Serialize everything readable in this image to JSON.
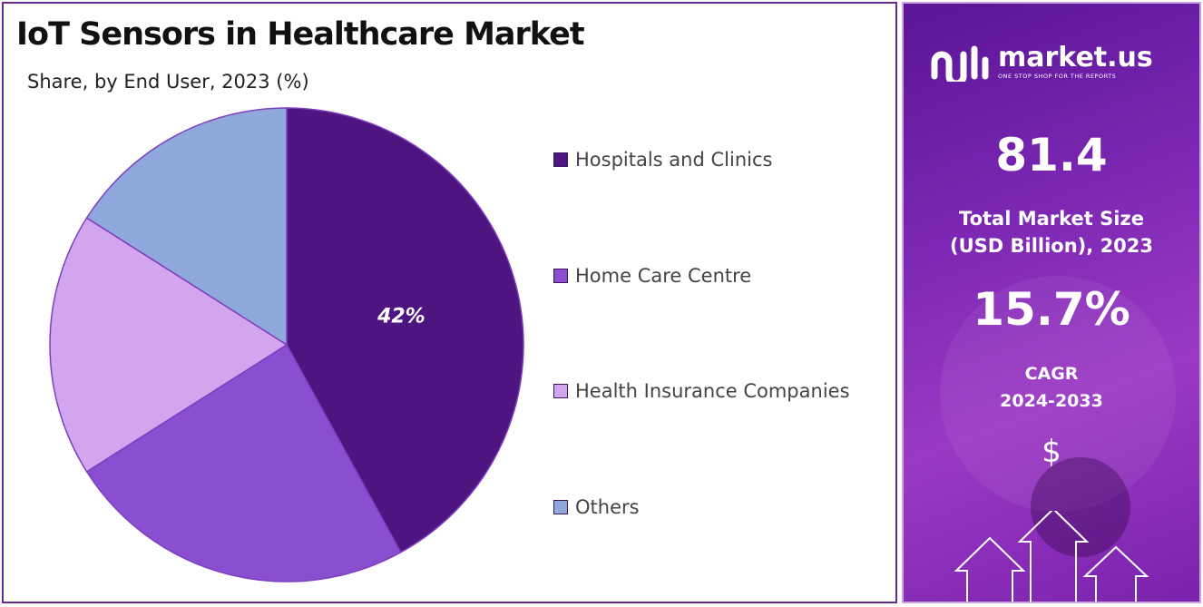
{
  "chart": {
    "title": "IoT Sensors in Healthcare Market",
    "subtitle": "Share, by End User, 2023 (%)"
  },
  "chart_data": {
    "type": "pie",
    "title": "IoT Sensors in Healthcare Market",
    "subtitle": "Share, by End User, 2023 (%)",
    "start_angle_deg": 0,
    "direction": "clockwise",
    "categories": [
      "Hospitals and Clinics",
      "Home Care Centre",
      "Health Insurance Companies",
      "Others"
    ],
    "values": [
      42,
      24,
      18,
      16
    ],
    "colors": [
      "#4e1480",
      "#8a4fd0",
      "#d2a5ee",
      "#8fa9dc"
    ],
    "data_labels": [
      "42%",
      "",
      "",
      ""
    ],
    "legend_position": "right"
  },
  "legend": {
    "items": [
      {
        "label": "Hospitals and Clinics",
        "color": "#4e1480"
      },
      {
        "label": "Home Care Centre",
        "color": "#8a4fd0"
      },
      {
        "label": "Health Insurance Companies",
        "color": "#d2a5ee"
      },
      {
        "label": "Others",
        "color": "#8fa9dc"
      }
    ]
  },
  "sidebar": {
    "brand_name": "market.us",
    "brand_tagline": "ONE STOP SHOP FOR THE REPORTS",
    "market_size_value": "81.4",
    "market_size_label_line1": "Total Market Size",
    "market_size_label_line2": "(USD Billion), 2023",
    "cagr_value": "15.7%",
    "cagr_label_line1": "CAGR",
    "cagr_label_line2": "2024-2033",
    "currency_symbol": "$",
    "icons": [
      "market-us-logo-icon",
      "up-arrow-icon"
    ]
  }
}
